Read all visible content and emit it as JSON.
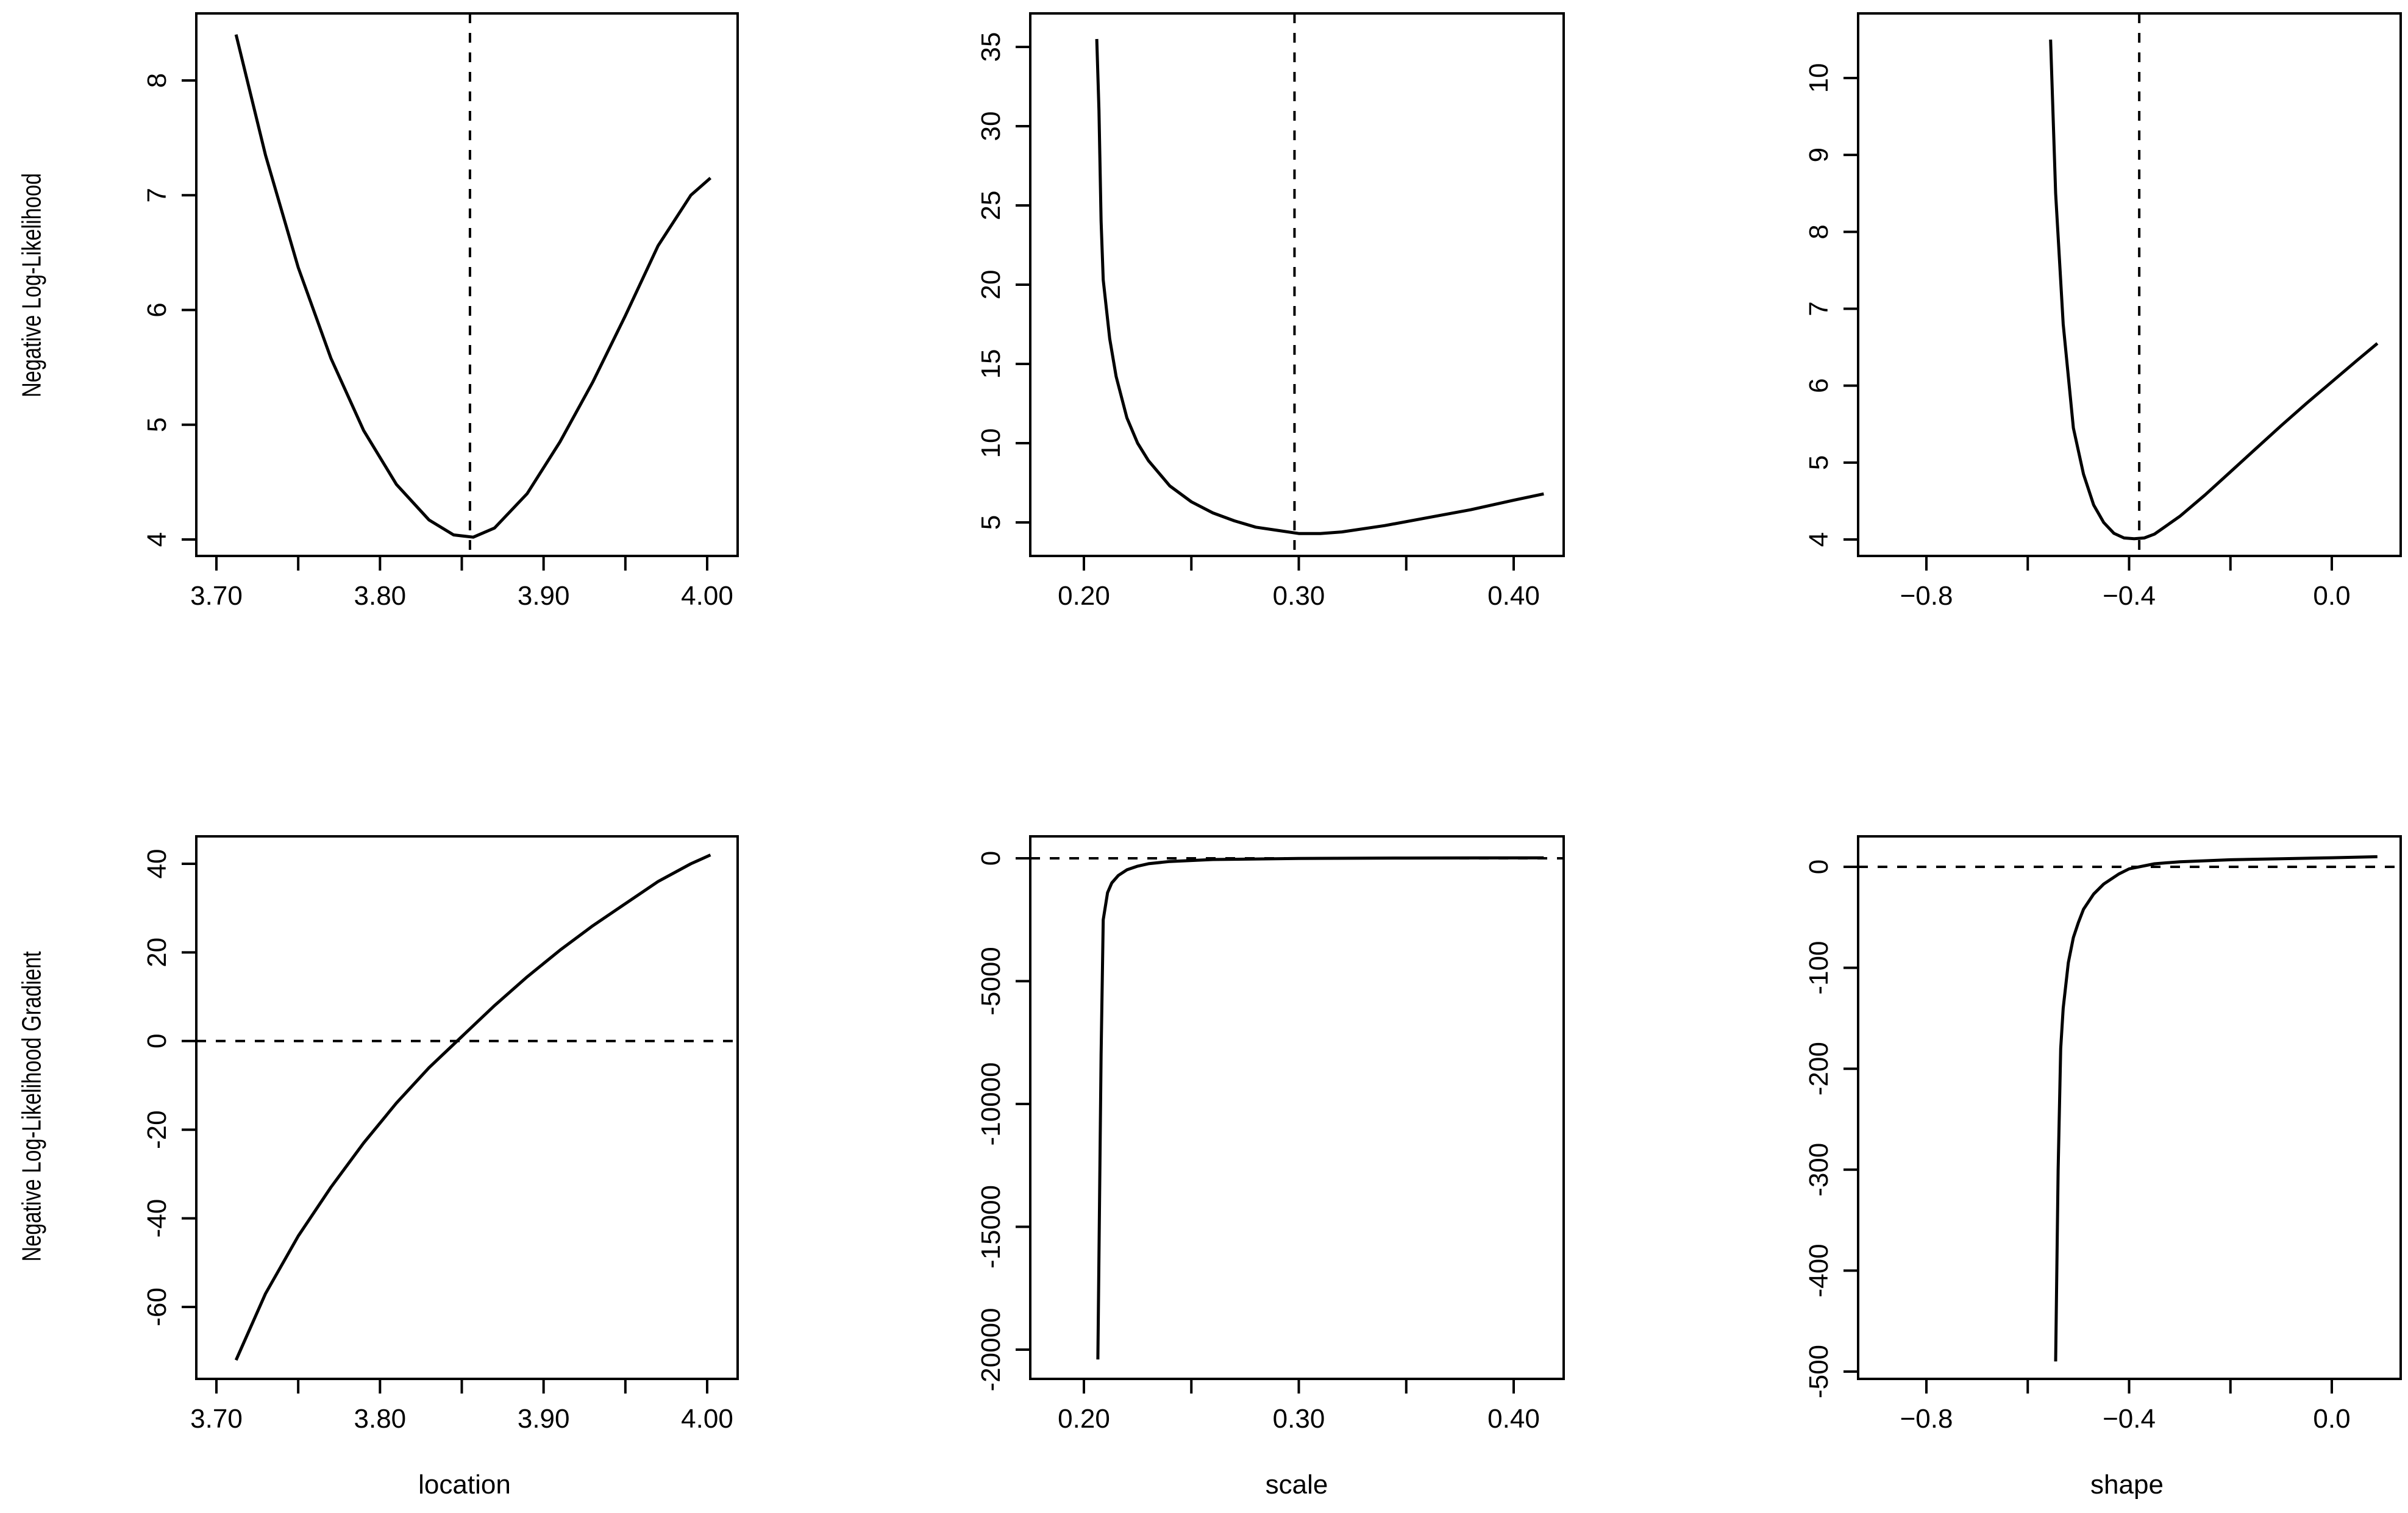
{
  "chart_data": [
    {
      "type": "line",
      "panel": "top-left",
      "xlabel": "",
      "ylabel": "Negative Log-Likelihood",
      "xlim": [
        3.7,
        4.0
      ],
      "ylim": [
        4,
        8.5
      ],
      "xticks": [
        3.7,
        3.75,
        3.8,
        3.85,
        3.9,
        3.95,
        4.0
      ],
      "xtick_labels": [
        "3.70",
        "",
        "3.80",
        "",
        "3.90",
        "",
        "4.00"
      ],
      "yticks": [
        4,
        5,
        6,
        7,
        8
      ],
      "ytick_labels": [
        "4",
        "5",
        "6",
        "7",
        "8"
      ],
      "reference_line": {
        "orientation": "vertical",
        "value": 3.855
      },
      "x": [
        3.712,
        3.73,
        3.75,
        3.77,
        3.79,
        3.81,
        3.83,
        3.845,
        3.857,
        3.87,
        3.89,
        3.91,
        3.93,
        3.95,
        3.97,
        3.99,
        4.002
      ],
      "y": [
        8.4,
        7.35,
        6.37,
        5.58,
        4.95,
        4.48,
        4.17,
        4.04,
        4.02,
        4.1,
        4.4,
        4.85,
        5.37,
        5.95,
        6.56,
        7.0,
        7.15
      ]
    },
    {
      "type": "line",
      "panel": "top-middle",
      "xlabel": "",
      "ylabel": "",
      "xlim": [
        0.2,
        0.41
      ],
      "ylim": [
        5,
        35
      ],
      "xticks": [
        0.2,
        0.25,
        0.3,
        0.35,
        0.4
      ],
      "xtick_labels": [
        "0.20",
        "",
        "0.30",
        "",
        "0.40"
      ],
      "yticks": [
        5,
        10,
        15,
        20,
        25,
        30,
        35
      ],
      "ytick_labels": [
        "5",
        "10",
        "15",
        "20",
        "25",
        "30",
        "35"
      ],
      "reference_line": {
        "orientation": "vertical",
        "value": 0.298
      },
      "x": [
        0.206,
        0.207,
        0.208,
        0.209,
        0.212,
        0.215,
        0.22,
        0.225,
        0.23,
        0.24,
        0.25,
        0.26,
        0.27,
        0.28,
        0.29,
        0.3,
        0.31,
        0.32,
        0.34,
        0.36,
        0.38,
        0.4,
        0.414
      ],
      "y": [
        35.5,
        31,
        24,
        20.3,
        16.6,
        14.2,
        11.6,
        10,
        8.9,
        7.3,
        6.3,
        5.6,
        5.1,
        4.7,
        4.5,
        4.3,
        4.3,
        4.4,
        4.8,
        5.3,
        5.8,
        6.4,
        6.8
      ]
    },
    {
      "type": "line",
      "panel": "top-right",
      "xlabel": "",
      "ylabel": "",
      "xlim": [
        -0.8,
        0.0
      ],
      "ylim": [
        4,
        10
      ],
      "xticks": [
        -0.8,
        -0.6,
        -0.4,
        -0.2,
        0.0
      ],
      "xtick_labels": [
        "−0.8",
        "",
        "−0.4",
        "",
        "0.0"
      ],
      "yticks": [
        4,
        5,
        6,
        7,
        8,
        9,
        10
      ],
      "ytick_labels": [
        "4",
        "5",
        "6",
        "7",
        "8",
        "9",
        "10"
      ],
      "reference_line": {
        "orientation": "vertical",
        "value": -0.38
      },
      "x": [
        -0.555,
        -0.545,
        -0.53,
        -0.51,
        -0.49,
        -0.47,
        -0.45,
        -0.43,
        -0.41,
        -0.39,
        -0.37,
        -0.35,
        -0.3,
        -0.25,
        -0.2,
        -0.15,
        -0.1,
        -0.05,
        0.0,
        0.05,
        0.09
      ],
      "y": [
        10.5,
        8.5,
        6.8,
        5.45,
        4.85,
        4.45,
        4.22,
        4.08,
        4.02,
        4.01,
        4.02,
        4.07,
        4.3,
        4.58,
        4.88,
        5.18,
        5.48,
        5.77,
        6.05,
        6.33,
        6.55
      ]
    },
    {
      "type": "line",
      "panel": "bottom-left",
      "xlabel": "location",
      "ylabel": "Negative Log-Likelihood Gradient",
      "xlim": [
        3.7,
        4.0
      ],
      "ylim": [
        -60,
        40
      ],
      "xticks": [
        3.7,
        3.75,
        3.8,
        3.85,
        3.9,
        3.95,
        4.0
      ],
      "xtick_labels": [
        "3.70",
        "",
        "3.80",
        "",
        "3.90",
        "",
        "4.00"
      ],
      "yticks": [
        -60,
        -40,
        -20,
        0,
        20,
        40
      ],
      "ytick_labels": [
        "-60",
        "-40",
        "-20",
        "0",
        "20",
        "40"
      ],
      "reference_line": {
        "orientation": "horizontal",
        "value": 0
      },
      "x": [
        3.712,
        3.73,
        3.75,
        3.77,
        3.79,
        3.81,
        3.83,
        3.85,
        3.87,
        3.89,
        3.91,
        3.93,
        3.95,
        3.97,
        3.99,
        4.002
      ],
      "y": [
        -72,
        -57,
        -44,
        -33,
        -23,
        -14,
        -6,
        1,
        8,
        14.5,
        20.5,
        26,
        31,
        36,
        40,
        42
      ]
    },
    {
      "type": "line",
      "panel": "bottom-middle",
      "xlabel": "scale",
      "ylabel": "",
      "xlim": [
        0.2,
        0.41
      ],
      "ylim": [
        -20000,
        0
      ],
      "xticks": [
        0.2,
        0.25,
        0.3,
        0.35,
        0.4
      ],
      "xtick_labels": [
        "0.20",
        "",
        "0.30",
        "",
        "0.40"
      ],
      "yticks": [
        -20000,
        -15000,
        -10000,
        -5000,
        0
      ],
      "ytick_labels": [
        "-20000",
        "-15000",
        "-10000",
        "-5000",
        "0"
      ],
      "reference_line": {
        "orientation": "horizontal",
        "value": 0
      },
      "x": [
        0.2065,
        0.208,
        0.209,
        0.211,
        0.213,
        0.216,
        0.22,
        0.225,
        0.23,
        0.24,
        0.26,
        0.3,
        0.35,
        0.414
      ],
      "y": [
        -20400,
        -8000,
        -2500,
        -1400,
        -1000,
        -700,
        -470,
        -320,
        -220,
        -130,
        -50,
        -5,
        10,
        20
      ]
    },
    {
      "type": "line",
      "panel": "bottom-right",
      "xlabel": "shape",
      "ylabel": "",
      "xlim": [
        -0.8,
        0.0
      ],
      "ylim": [
        -500,
        0
      ],
      "xticks": [
        -0.8,
        -0.6,
        -0.4,
        -0.2,
        0.0
      ],
      "xtick_labels": [
        "−0.8",
        "",
        "−0.4",
        "",
        "0.0"
      ],
      "yticks": [
        -500,
        -400,
        -300,
        -200,
        -100,
        0
      ],
      "ytick_labels": [
        "-500",
        "-400",
        "-300",
        "-200",
        "-100",
        "0"
      ],
      "reference_line": {
        "orientation": "horizontal",
        "value": 0
      },
      "x": [
        -0.545,
        -0.54,
        -0.535,
        -0.53,
        -0.52,
        -0.51,
        -0.5,
        -0.49,
        -0.47,
        -0.45,
        -0.42,
        -0.4,
        -0.35,
        -0.3,
        -0.2,
        -0.1,
        0.0,
        0.09
      ],
      "y": [
        -490,
        -300,
        -180,
        -140,
        -95,
        -70,
        -55,
        -42,
        -27,
        -17,
        -7,
        -2,
        3,
        5,
        7,
        8,
        9,
        10
      ]
    }
  ]
}
